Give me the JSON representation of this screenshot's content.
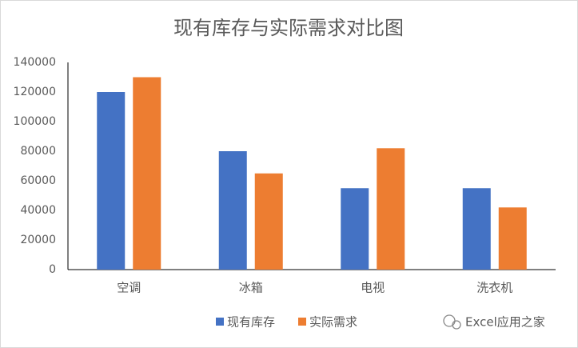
{
  "chart_data": {
    "type": "bar",
    "title": "现有库存与实际需求对比图",
    "categories": [
      "空调",
      "冰箱",
      "电视",
      "洗衣机"
    ],
    "series": [
      {
        "name": "现有库存",
        "color": "#4472c4",
        "values": [
          120000,
          80000,
          55000,
          55000
        ]
      },
      {
        "name": "实际需求",
        "color": "#ed7d31",
        "values": [
          130000,
          65000,
          82000,
          42000
        ]
      }
    ],
    "ylim": [
      0,
      140000
    ],
    "yticks": [
      0,
      20000,
      40000,
      60000,
      80000,
      100000,
      120000,
      140000
    ],
    "grid": false,
    "legend": "bottom",
    "watermark": "Excel应用之家"
  }
}
